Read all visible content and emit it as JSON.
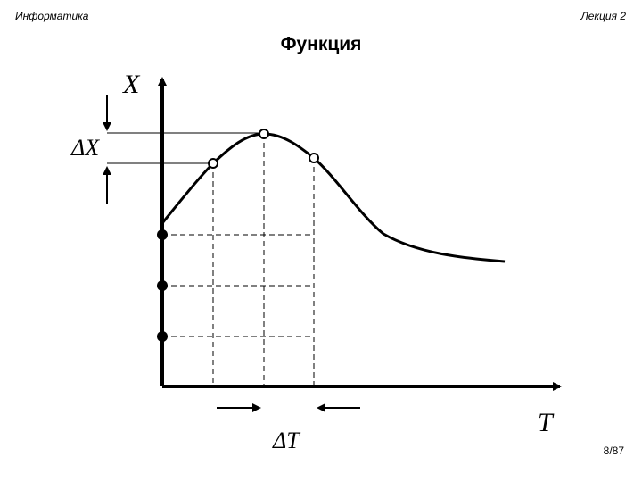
{
  "header": {
    "course": "Информатика",
    "lecture": "Лекция 2"
  },
  "title": "Функция",
  "diagram": {
    "y_axis_label": "X",
    "x_axis_label": "T",
    "delta_x_label": "ΔX",
    "delta_t_label": "ΔT",
    "quantized_levels_count": 3,
    "sample_points_count": 3
  },
  "footer": {
    "page": "8/87"
  }
}
